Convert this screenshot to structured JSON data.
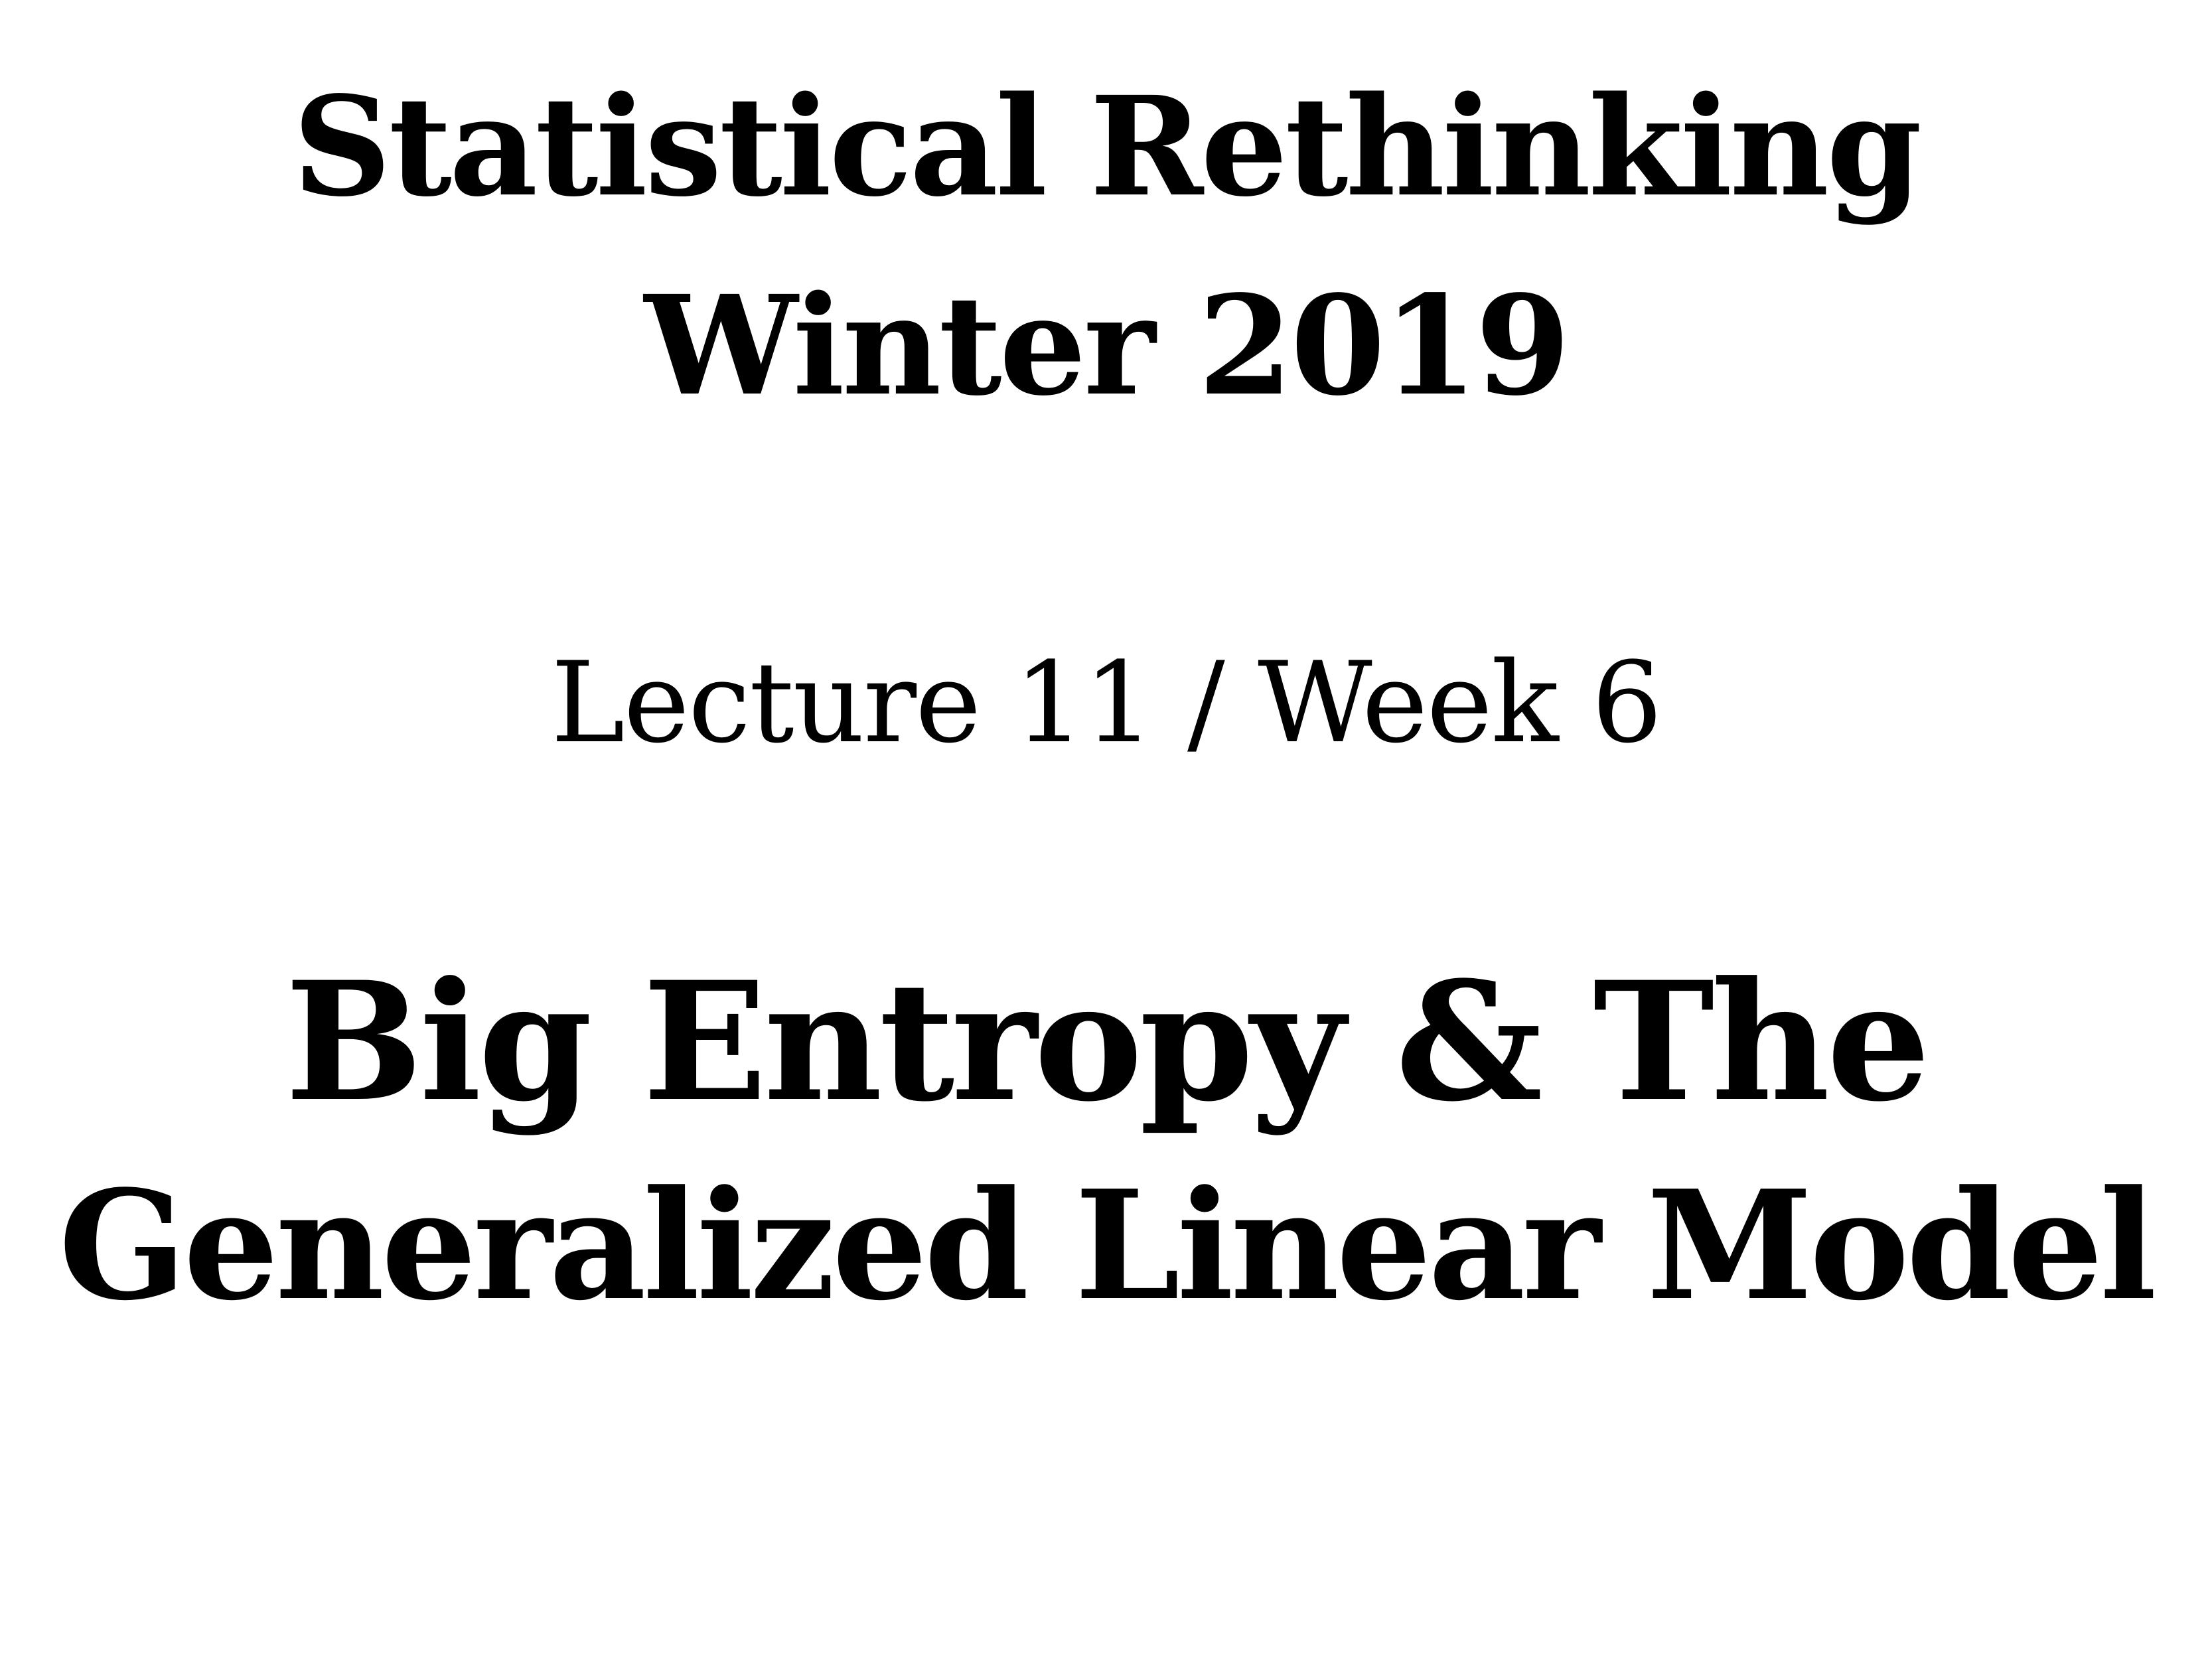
{
  "slide": {
    "course_title": "Statistical Rethinking",
    "term": "Winter 2019",
    "lecture": "Lecture 11 / Week 6",
    "topic_line_1": "Big Entropy & The",
    "topic_line_2": "Generalized Linear Model"
  },
  "colors": {
    "background": "#ffffff",
    "text": "#000000"
  }
}
